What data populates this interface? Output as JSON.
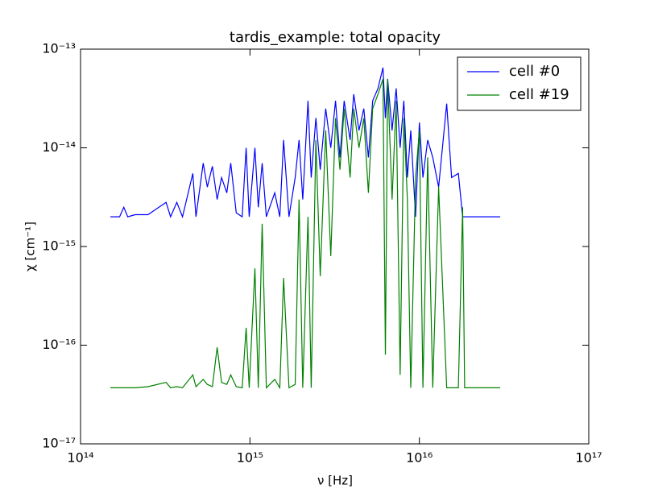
{
  "chart_data": {
    "type": "line",
    "title": "tardis_example: total opacity",
    "xlabel": "ν [Hz]",
    "ylabel": "χ [cm⁻¹]",
    "xscale": "log",
    "yscale": "log",
    "xlim": [
      100000000000000.0,
      1e+17
    ],
    "ylim": [
      1e-17,
      1e-13
    ],
    "xticks": [
      {
        "value": 100000000000000.0,
        "label": "10¹⁴"
      },
      {
        "value": 1000000000000000.0,
        "label": "10¹⁵"
      },
      {
        "value": 1e+16,
        "label": "10¹⁶"
      },
      {
        "value": 1e+17,
        "label": "10¹⁷"
      }
    ],
    "yticks": [
      {
        "value": 1e-17,
        "label": "10⁻¹⁷"
      },
      {
        "value": 1e-16,
        "label": "10⁻¹⁶"
      },
      {
        "value": 1e-15,
        "label": "10⁻¹⁵"
      },
      {
        "value": 1e-14,
        "label": "10⁻¹⁴"
      },
      {
        "value": 1e-13,
        "label": "10⁻¹³"
      }
    ],
    "legend": "upper right",
    "x": [
      150000000000000.0,
      170000000000000.0,
      180000000000000.0,
      190000000000000.0,
      210000000000000.0,
      250000000000000.0,
      320000000000000.0,
      340000000000000.0,
      370000000000000.0,
      400000000000000.0,
      460000000000000.0,
      480000000000000.0,
      530000000000000.0,
      560000000000000.0,
      600000000000000.0,
      640000000000000.0,
      680000000000000.0,
      730000000000000.0,
      770000000000000.0,
      830000000000000.0,
      900000000000000.0,
      950000000000000.0,
      990000000000000.0,
      1070000000000000.0,
      1120000000000000.0,
      1180000000000000.0,
      1250000000000000.0,
      1400000000000000.0,
      1500000000000000.0,
      1580000000000000.0,
      1700000000000000.0,
      1850000000000000.0,
      1950000000000000.0,
      2050000000000000.0,
      2200000000000000.0,
      2300000000000000.0,
      2450000000000000.0,
      2600000000000000.0,
      2800000000000000.0,
      3000000000000000.0,
      3200000000000000.0,
      3400000000000000.0,
      3600000000000000.0,
      3900000000000000.0,
      4100000000000000.0,
      4400000000000000.0,
      4700000000000000.0,
      5000000000000000.0,
      5300000000000000.0,
      5700000000000000.0,
      6100000000000000.0,
      6300000000000000.0,
      6500000000000000.0,
      6900000000000000.0,
      7300000000000000.0,
      7700000000000000.0,
      8100000000000000.0,
      8500000000000000.0,
      8900000000000000.0,
      9500000000000000.0,
      1e+16,
      1.05e+16,
      1.12e+16,
      1.2e+16,
      1.3e+16,
      1.45e+16,
      1.55e+16,
      1.7e+16,
      1.8e+16,
      1.85e+16,
      3e+16
    ],
    "series": [
      {
        "name": "cell #0",
        "color": "#0000ff",
        "values": [
          2e-15,
          2e-15,
          2.5e-15,
          2e-15,
          2.1e-15,
          2.1e-15,
          2.8e-15,
          2e-15,
          2.8e-15,
          2e-15,
          5.5e-15,
          2e-15,
          7e-15,
          4e-15,
          6.5e-15,
          3e-15,
          5e-15,
          3.5e-15,
          7e-15,
          2.2e-15,
          2e-15,
          1e-14,
          2e-15,
          1e-14,
          2.5e-15,
          7e-15,
          2e-15,
          3.5e-15,
          2e-15,
          1.2e-14,
          2e-15,
          5e-15,
          1.2e-14,
          3e-15,
          3e-14,
          5e-15,
          2e-14,
          6e-15,
          2.5e-14,
          1e-14,
          3e-14,
          8e-15,
          3e-14,
          1.2e-14,
          3.5e-14,
          1.5e-14,
          2.5e-14,
          8e-15,
          3e-14,
          4e-14,
          6.5e-14,
          2e-14,
          5e-14,
          1.5e-14,
          4e-14,
          1e-14,
          3e-14,
          5e-15,
          1.5e-14,
          2e-15,
          1.8e-14,
          5e-15,
          1.2e-14,
          8e-15,
          4e-15,
          2.8e-14,
          5e-15,
          5.5e-15,
          2e-15,
          2e-15,
          2e-15
        ]
      },
      {
        "name": "cell #19",
        "color": "#008000",
        "values": [
          3.7e-17,
          3.7e-17,
          3.7e-17,
          3.7e-17,
          3.7e-17,
          3.8e-17,
          4.2e-17,
          3.7e-17,
          3.8e-17,
          3.7e-17,
          5e-17,
          3.8e-17,
          4.5e-17,
          4e-17,
          3.8e-17,
          9.5e-17,
          4.2e-17,
          4e-17,
          5e-17,
          3.8e-17,
          3.7e-17,
          1.5e-16,
          3.7e-17,
          6e-16,
          3.7e-17,
          1.7e-15,
          3.7e-17,
          4.5e-17,
          3.7e-17,
          4.8e-16,
          3.7e-17,
          4e-17,
          3e-15,
          3.7e-17,
          2e-15,
          3.7e-17,
          1.2e-14,
          5e-16,
          1.5e-14,
          8e-16,
          2e-14,
          6e-15,
          2.5e-14,
          5e-15,
          2.5e-14,
          1e-14,
          2e-14,
          3.5e-15,
          2.5e-14,
          3.5e-14,
          5e-14,
          8e-17,
          5e-14,
          3e-15,
          3e-14,
          5e-17,
          2e-14,
          3e-15,
          3.7e-17,
          5e-15,
          1.5e-14,
          3.7e-17,
          8e-15,
          3.7e-17,
          4e-15,
          3.7e-17,
          3.7e-17,
          3.7e-17,
          2.5e-15,
          3.7e-17,
          3.7e-17
        ]
      }
    ]
  }
}
